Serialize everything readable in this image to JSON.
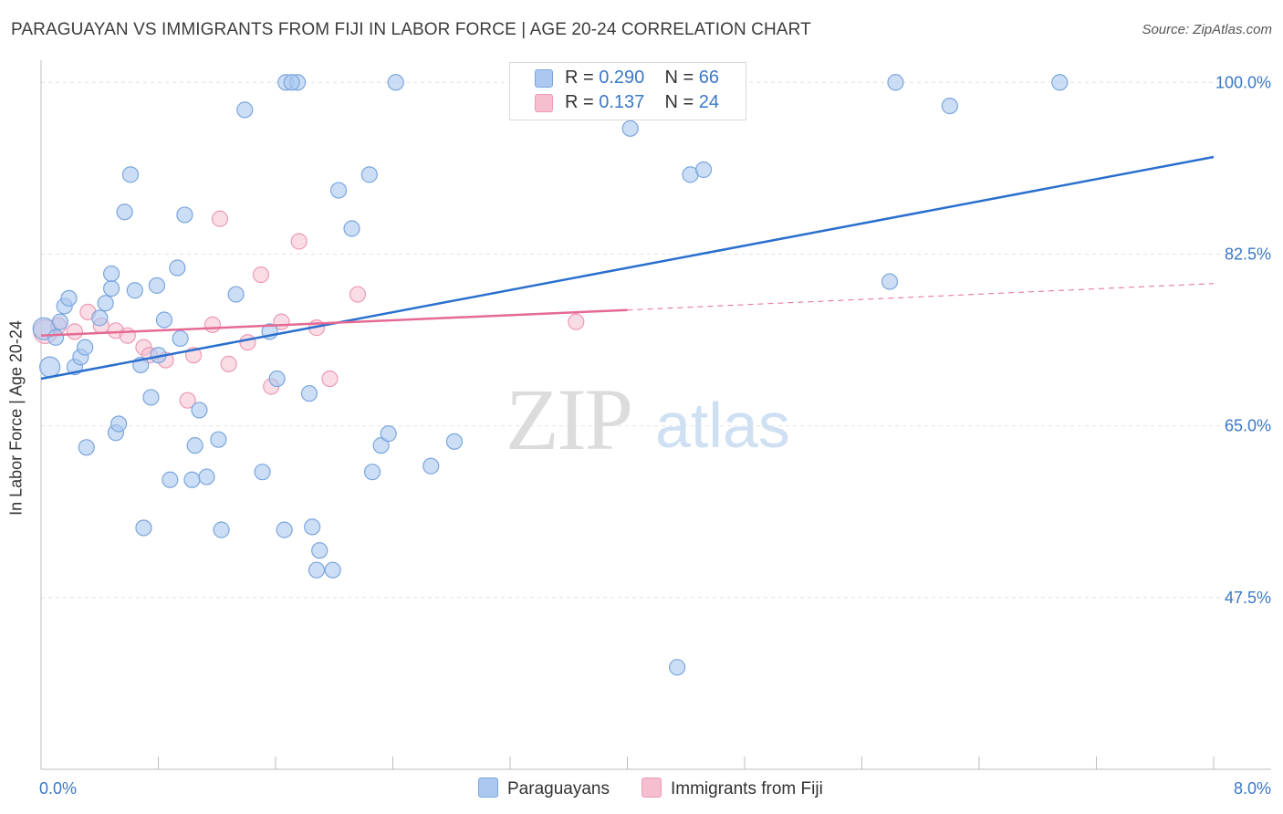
{
  "title": "PARAGUAYAN VS IMMIGRANTS FROM FIJI IN LABOR FORCE | AGE 20-24 CORRELATION CHART",
  "source": "Source: ZipAtlas.com",
  "watermark": {
    "zip": "ZIP",
    "atlas": "atlas"
  },
  "legend_top": {
    "rows": [
      {
        "r_label": "R = ",
        "r_value": "0.290",
        "n_label": "N = ",
        "n_value": "66"
      },
      {
        "r_label": "R = ",
        "r_value": " 0.137",
        "n_label": "N = ",
        "n_value": "24"
      }
    ]
  },
  "legend_bottom": {
    "series1": "Paraguayans",
    "series2": "Immigrants from Fiji"
  },
  "colors": {
    "blue_fill": "#aac8f0",
    "blue_stroke": "#7aa6dc",
    "blue_line": "#2a6fce",
    "pink_fill": "#f6bfd0",
    "pink_stroke": "#ec9ab5",
    "pink_line": "#e56a93",
    "tick_label": "#3a78c6",
    "grid": "#e2e2e2"
  },
  "chart_data": {
    "type": "scatter",
    "title": "PARAGUAYAN VS IMMIGRANTS FROM FIJI IN LABOR FORCE | AGE 20-24 CORRELATION CHART",
    "xlabel": "",
    "ylabel": "In Labor Force | Age 20-24",
    "xlim": [
      0.0,
      8.0
    ],
    "ylim": [
      30.0,
      101.7
    ],
    "x_tick_labels": [
      "0.0%",
      "8.0%"
    ],
    "y_ticks": [
      47.5,
      65.0,
      82.5,
      100.0
    ],
    "y_tick_labels": [
      "47.5%",
      "65.0%",
      "82.5%",
      "100.0%"
    ],
    "legend_position": "top-center",
    "series": [
      {
        "name": "Paraguayans",
        "R": 0.29,
        "N": 66,
        "trend": {
          "x": [
            0.0,
            8.0
          ],
          "y": [
            69.8,
            92.4
          ]
        },
        "points": [
          [
            0.02,
            74.9
          ],
          [
            0.06,
            71.0
          ],
          [
            0.1,
            74.0
          ],
          [
            0.13,
            75.6
          ],
          [
            0.16,
            77.2
          ],
          [
            0.19,
            78.0
          ],
          [
            0.23,
            71.0
          ],
          [
            0.27,
            72.0
          ],
          [
            0.3,
            73.0
          ],
          [
            0.31,
            62.8
          ],
          [
            0.4,
            76.0
          ],
          [
            0.44,
            77.5
          ],
          [
            0.48,
            79.0
          ],
          [
            0.48,
            80.5
          ],
          [
            0.51,
            64.3
          ],
          [
            0.53,
            65.2
          ],
          [
            0.57,
            86.8
          ],
          [
            0.61,
            90.6
          ],
          [
            0.64,
            78.8
          ],
          [
            0.68,
            71.2
          ],
          [
            0.7,
            54.6
          ],
          [
            0.75,
            67.9
          ],
          [
            0.79,
            79.3
          ],
          [
            0.8,
            72.2
          ],
          [
            0.84,
            75.8
          ],
          [
            0.88,
            59.5
          ],
          [
            0.93,
            81.1
          ],
          [
            0.95,
            73.9
          ],
          [
            0.98,
            86.5
          ],
          [
            1.03,
            59.5
          ],
          [
            1.05,
            63.0
          ],
          [
            1.08,
            66.6
          ],
          [
            1.13,
            59.8
          ],
          [
            1.21,
            63.6
          ],
          [
            1.23,
            54.4
          ],
          [
            1.33,
            78.4
          ],
          [
            1.39,
            97.2
          ],
          [
            1.51,
            60.3
          ],
          [
            1.56,
            74.6
          ],
          [
            1.61,
            69.8
          ],
          [
            1.66,
            54.4
          ],
          [
            1.67,
            100.0
          ],
          [
            1.75,
            100.0
          ],
          [
            1.83,
            68.3
          ],
          [
            1.85,
            54.7
          ],
          [
            1.88,
            50.3
          ],
          [
            1.9,
            52.3
          ],
          [
            1.99,
            50.3
          ],
          [
            2.03,
            89.0
          ],
          [
            2.12,
            85.1
          ],
          [
            2.24,
            90.6
          ],
          [
            2.26,
            60.3
          ],
          [
            2.32,
            63.0
          ],
          [
            2.37,
            64.2
          ],
          [
            2.42,
            100.0
          ],
          [
            2.66,
            60.9
          ],
          [
            2.82,
            63.4
          ],
          [
            4.02,
            95.3
          ],
          [
            4.34,
            40.4
          ],
          [
            4.43,
            90.6
          ],
          [
            4.52,
            91.1
          ],
          [
            5.79,
            79.7
          ],
          [
            5.83,
            100.0
          ],
          [
            6.2,
            97.6
          ],
          [
            6.95,
            100.0
          ],
          [
            1.71,
            100.0
          ]
        ]
      },
      {
        "name": "Immigrants from Fiji",
        "R": 0.137,
        "N": 24,
        "trend": {
          "x": [
            0.0,
            4.0
          ],
          "y": [
            74.2,
            76.8
          ]
        },
        "trend_extension": {
          "x": [
            4.0,
            8.0
          ],
          "y": [
            76.8,
            79.5
          ]
        },
        "points": [
          [
            0.03,
            74.6
          ],
          [
            0.12,
            75.2
          ],
          [
            0.23,
            74.6
          ],
          [
            0.32,
            76.6
          ],
          [
            0.41,
            75.2
          ],
          [
            0.51,
            74.7
          ],
          [
            0.59,
            74.2
          ],
          [
            0.7,
            73.0
          ],
          [
            0.74,
            72.2
          ],
          [
            0.85,
            71.7
          ],
          [
            1.0,
            67.6
          ],
          [
            1.04,
            72.2
          ],
          [
            1.17,
            75.3
          ],
          [
            1.22,
            86.1
          ],
          [
            1.28,
            71.3
          ],
          [
            1.41,
            73.5
          ],
          [
            1.5,
            80.4
          ],
          [
            1.57,
            69.0
          ],
          [
            1.64,
            75.6
          ],
          [
            1.76,
            83.8
          ],
          [
            1.88,
            75.0
          ],
          [
            1.97,
            69.8
          ],
          [
            2.16,
            78.4
          ],
          [
            3.65,
            75.6
          ]
        ]
      }
    ]
  }
}
